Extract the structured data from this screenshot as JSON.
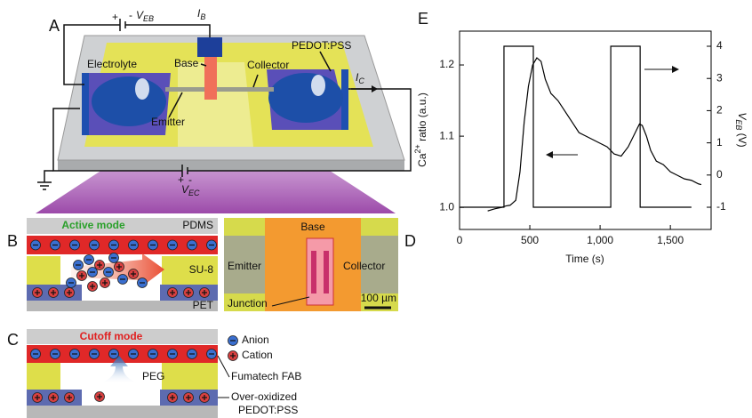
{
  "panels": {
    "A": {
      "label": "A",
      "electrolyte": "Electrolyte",
      "base": "Base",
      "collector": "Collector",
      "pedot": "PEDOT:PSS",
      "emitter": "Emitter",
      "v_eb": {
        "plus": "+",
        "minus": "-",
        "main": "V",
        "sub": "EB"
      },
      "i_b": {
        "main": "I",
        "sub": "B"
      },
      "i_c": {
        "main": "I",
        "sub": "C"
      },
      "v_ec": {
        "plus": "+",
        "minus": "-",
        "main": "V",
        "sub": "EC"
      }
    },
    "B": {
      "label": "B",
      "mode": "Active mode",
      "pdms": "PDMS",
      "su8": "SU-8",
      "pet": "PET"
    },
    "C": {
      "label": "C",
      "mode": "Cutoff mode",
      "anion": "Anion",
      "cation": "Cation",
      "peg": "PEG",
      "fab": "Fumatech FAB",
      "over": "Over-oxidized",
      "pedot": "PEDOT:PSS"
    },
    "D": {
      "label": "D",
      "base": "Base",
      "emitter": "Emitter",
      "collector": "Collector",
      "junction": "Junction",
      "scale": "100 µm"
    }
  },
  "chart_data": {
    "type": "line",
    "label": "E",
    "x_label": "Time (s)",
    "y_label": {
      "main": "Ca",
      "sup": "2+",
      "rest": " ratio (a.u.)"
    },
    "y2_label": {
      "main": "V",
      "sub": "EB",
      "rest": " (V)"
    },
    "xlim": [
      0,
      1790
    ],
    "ylim": [
      0.969,
      1.2475
    ],
    "y2lim": [
      -1.69,
      4.47
    ],
    "xticks": [
      0,
      500,
      {
        "value": 1000,
        "label": "1,000"
      },
      {
        "value": 1500,
        "label": "1,500"
      }
    ],
    "yticks": [
      {
        "value": 1,
        "label": "1.0"
      },
      1.1,
      1.2
    ],
    "y2ticks": [
      -1,
      0,
      1,
      2,
      3,
      4
    ],
    "series": [
      {
        "color": "#000000",
        "x": [
          200,
          250,
          300,
          330,
          360,
          400,
          430,
          460,
          490,
          520,
          550,
          580,
          610,
          650,
          700,
          750,
          800,
          850,
          900,
          950,
          1000,
          1050,
          1100,
          1150,
          1200,
          1250,
          1280,
          1300,
          1330,
          1360,
          1400,
          1450,
          1500,
          1550,
          1600,
          1650,
          1700,
          1720
        ],
        "values": [
          0.995,
          0.998,
          1.0,
          1.002,
          1.003,
          1.01,
          1.05,
          1.12,
          1.17,
          1.2,
          1.21,
          1.205,
          1.18,
          1.16,
          1.15,
          1.135,
          1.12,
          1.105,
          1.1,
          1.095,
          1.09,
          1.085,
          1.075,
          1.072,
          1.085,
          1.105,
          1.117,
          1.115,
          1.1,
          1.08,
          1.065,
          1.06,
          1.05,
          1.045,
          1.04,
          1.038,
          1.033,
          1.032
        ]
      },
      {
        "color": "#000000",
        "axis": "y2",
        "x": [
          0,
          316,
          316,
          525,
          525,
          1076,
          1076,
          1285,
          1285,
          1650
        ],
        "values": [
          -1,
          -1,
          4,
          4,
          -1,
          -1,
          4,
          4,
          -1,
          -1
        ]
      }
    ]
  }
}
